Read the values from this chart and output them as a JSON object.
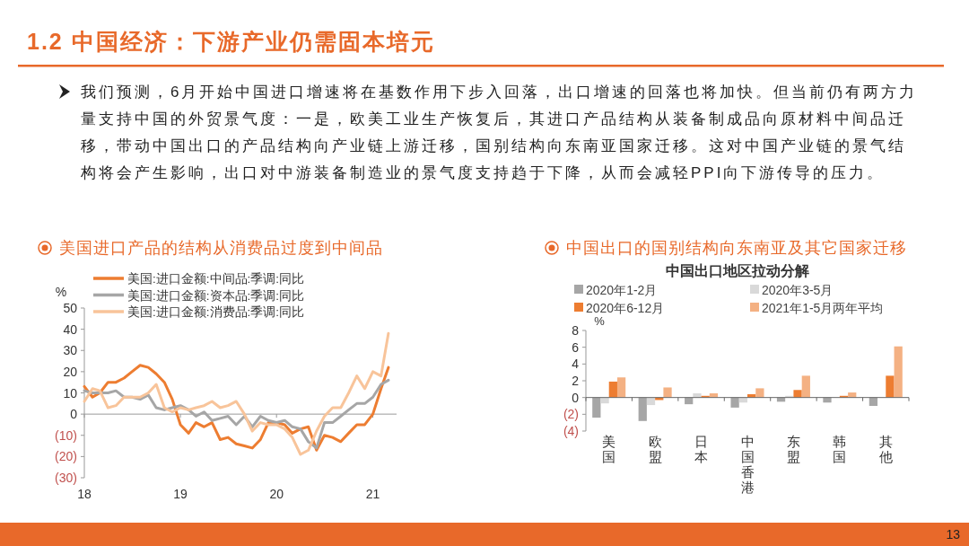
{
  "chart_data": [
    {
      "type": "other",
      "title": "1.2 中国经济：下游产业仍需固本培元",
      "annotations": [
        "我们预测，6月开始中国进口增速将在基数作用下步入回落，出口增速的回落也将加快。但当前仍有两方力量支持中国的外贸景气度：一是，欧美工业生产恢复后，其进口产品结构从装备制成品向原材料中间品迁移，带动中国出口的产品结构向产业链上游迁移，国别结构向东南亚国家迁移。这对中国产业链的景气结构将会产生影响，出口对中游装备制造业的景气度支持趋于下降，从而会减轻PPI向下游传导的压力。",
        "13"
      ]
    },
    {
      "type": "line",
      "title": "美国进口产品的结构从消费品过度到中间品",
      "ylabel": "%",
      "legend": "top left",
      "marker": "none",
      "line_style": "solid",
      "x": [
        "2018-01",
        "2018-02",
        "2018-03",
        "2018-04",
        "2018-05",
        "2018-06",
        "2018-07",
        "2018-08",
        "2018-09",
        "2018-10",
        "2018-11",
        "2018-12",
        "2019-01",
        "2019-02",
        "2019-03",
        "2019-04",
        "2019-05",
        "2019-06",
        "2019-07",
        "2019-08",
        "2019-09",
        "2019-10",
        "2019-11",
        "2019-12",
        "2020-01",
        "2020-02",
        "2020-03",
        "2020-04",
        "2020-05",
        "2020-06",
        "2020-07",
        "2020-08",
        "2020-09",
        "2020-10",
        "2020-11",
        "2020-12",
        "2021-01",
        "2021-02",
        "2021-03"
      ],
      "xlim": [
        "2018-01",
        "2021-04"
      ],
      "xticks": [
        {
          "value": "2018-01",
          "label": "18"
        },
        {
          "value": "2019-01",
          "label": "19"
        },
        {
          "value": "2020-01",
          "label": "20"
        },
        {
          "value": "2021-01",
          "label": "21"
        }
      ],
      "ylim": [
        -30,
        50
      ],
      "yticks": [
        {
          "value": -30,
          "label": "(30)"
        },
        {
          "value": -20,
          "label": "(20)"
        },
        {
          "value": -10,
          "label": "(10)"
        },
        0,
        10,
        20,
        30,
        40,
        50
      ],
      "series": [
        {
          "name": "美国:进口金额:中间品:季调:同比",
          "color": "#ed7d31",
          "values": [
            13,
            8,
            10,
            15,
            15,
            17,
            20,
            23,
            22,
            19,
            15,
            7,
            -5,
            -9,
            -4,
            -6,
            -4,
            -12,
            -11,
            -14,
            -15,
            -16,
            -12,
            -4,
            -4,
            -5,
            -9,
            -7,
            -6,
            -17,
            -10,
            -11,
            -13,
            -9,
            -5,
            -5,
            0,
            12,
            22
          ]
        },
        {
          "name": "美国:进口金额:资本品:季调:同比",
          "color": "#a6a6a6",
          "values": [
            11,
            10,
            10,
            10,
            11,
            8,
            8,
            7,
            9,
            3,
            2,
            3,
            4,
            2,
            -1,
            1,
            -3,
            -2,
            -1,
            -5,
            -1,
            -6,
            -1,
            -3,
            -4,
            -3,
            -6,
            -7,
            -13,
            -16,
            -4,
            -4,
            -1,
            2,
            5,
            5,
            8,
            14,
            16
          ]
        },
        {
          "name": "美国:进口金额:消费品:季调:同比",
          "color": "#f8c49a",
          "values": [
            6,
            12,
            11,
            3,
            4,
            8,
            8,
            8,
            10,
            14,
            3,
            1,
            3,
            2,
            3,
            4,
            6,
            3,
            4,
            6,
            0,
            -8,
            -4,
            -5,
            -5,
            -7,
            -11,
            -19,
            -17,
            -8,
            -1,
            3,
            3,
            10,
            18,
            12,
            20,
            18,
            38
          ]
        }
      ]
    },
    {
      "type": "bar",
      "title": "中国出口的国别结构向东南亚及其它国家迁移",
      "subtitle": "中国出口地区拉动分解",
      "ylabel": "%",
      "legend": "top",
      "categories": [
        "美国",
        "欧盟",
        "日本",
        "中国香港",
        "东盟",
        "韩国",
        "其他"
      ],
      "ylim": [
        -4,
        8
      ],
      "yticks": [
        {
          "value": -4,
          "label": "(4)"
        },
        {
          "value": -2,
          "label": "(2)"
        },
        0,
        2,
        4,
        6,
        8
      ],
      "series": [
        {
          "name": "2020年1-2月",
          "color": "#a6a6a6",
          "values": [
            -2.4,
            -2.8,
            -0.8,
            -1.2,
            -0.5,
            -0.6,
            -1.0
          ]
        },
        {
          "name": "2020年3-5月",
          "color": "#d9d9d9",
          "values": [
            -0.7,
            -0.9,
            0.5,
            -0.6,
            0.2,
            0,
            0
          ]
        },
        {
          "name": "2020年6-12月",
          "color": "#ed7d31",
          "values": [
            1.9,
            -0.3,
            0.2,
            0.4,
            0.9,
            0.2,
            2.6
          ]
        },
        {
          "name": "2021年1-5月两年平均",
          "color": "#f4b183",
          "values": [
            2.4,
            1.2,
            0.5,
            1.1,
            2.6,
            0.6,
            6.1
          ]
        }
      ]
    }
  ]
}
